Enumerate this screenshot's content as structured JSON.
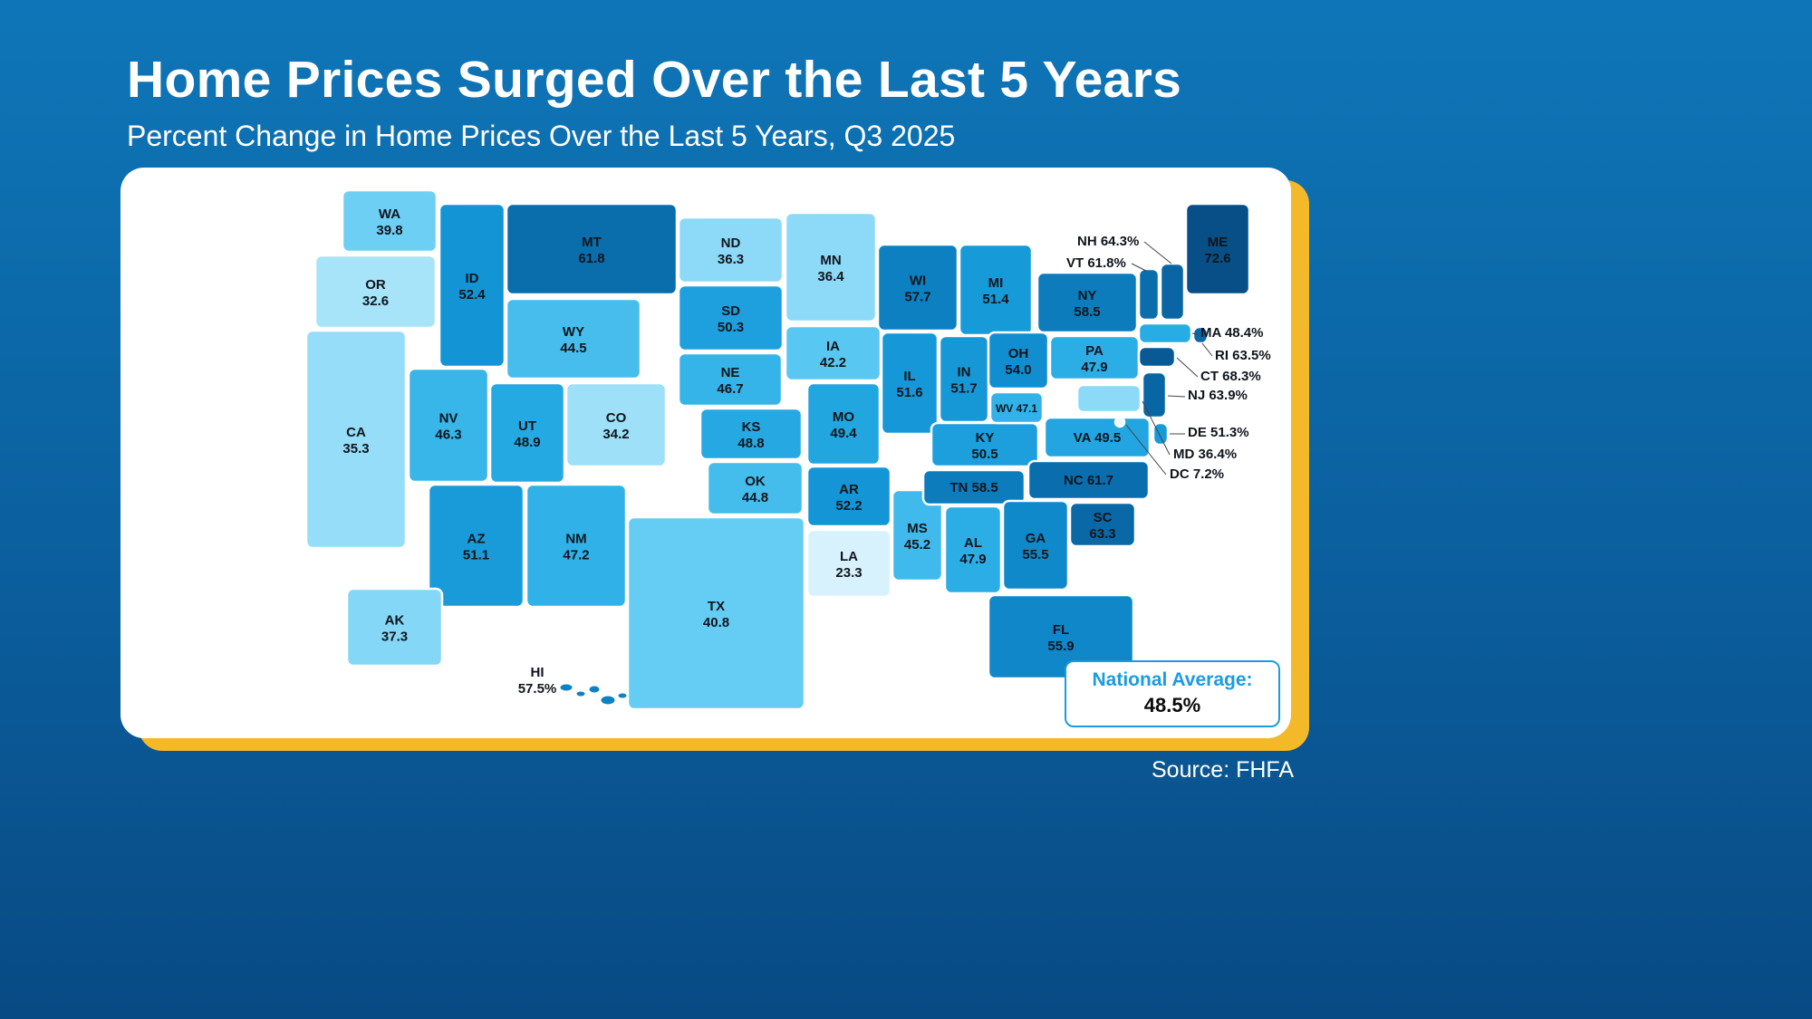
{
  "page": {
    "title": "Home Prices Surged Over the Last 5 Years",
    "subtitle": "Percent Change in Home Prices Over the Last 5 Years, Q3 2025",
    "source": "Source: FHFA"
  },
  "national_average": {
    "label": "National Average:",
    "value": "48.5%"
  },
  "chart_data": {
    "type": "choropleth-map",
    "region": "United States",
    "title": "Percent Change in Home Prices Over the Last 5 Years, Q3 2025",
    "unit": "percent",
    "value_range": [
      7.2,
      72.6
    ],
    "national_average": 48.5,
    "color_scale": {
      "low": "#f3fbff",
      "high": "#07497e"
    },
    "states": [
      {
        "abbr": "WA",
        "value": 39.8,
        "display": "39.8"
      },
      {
        "abbr": "OR",
        "value": 32.6,
        "display": "32.6"
      },
      {
        "abbr": "CA",
        "value": 35.3,
        "display": "35.3"
      },
      {
        "abbr": "NV",
        "value": 46.3,
        "display": "46.3"
      },
      {
        "abbr": "ID",
        "value": 52.4,
        "display": "52.4"
      },
      {
        "abbr": "MT",
        "value": 61.8,
        "display": "61.8"
      },
      {
        "abbr": "WY",
        "value": 44.5,
        "display": "44.5"
      },
      {
        "abbr": "UT",
        "value": 48.9,
        "display": "48.9"
      },
      {
        "abbr": "CO",
        "value": 34.2,
        "display": "34.2"
      },
      {
        "abbr": "AZ",
        "value": 51.1,
        "display": "51.1"
      },
      {
        "abbr": "NM",
        "value": 47.2,
        "display": "47.2"
      },
      {
        "abbr": "ND",
        "value": 36.3,
        "display": "36.3"
      },
      {
        "abbr": "SD",
        "value": 50.3,
        "display": "50.3"
      },
      {
        "abbr": "NE",
        "value": 46.7,
        "display": "46.7"
      },
      {
        "abbr": "KS",
        "value": 48.8,
        "display": "48.8"
      },
      {
        "abbr": "OK",
        "value": 44.8,
        "display": "44.8"
      },
      {
        "abbr": "TX",
        "value": 40.8,
        "display": "40.8"
      },
      {
        "abbr": "MN",
        "value": 36.4,
        "display": "36.4"
      },
      {
        "abbr": "IA",
        "value": 42.2,
        "display": "42.2"
      },
      {
        "abbr": "MO",
        "value": 49.4,
        "display": "49.4"
      },
      {
        "abbr": "AR",
        "value": 52.2,
        "display": "52.2"
      },
      {
        "abbr": "LA",
        "value": 23.3,
        "display": "23.3"
      },
      {
        "abbr": "WI",
        "value": 57.7,
        "display": "57.7"
      },
      {
        "abbr": "IL",
        "value": 51.6,
        "display": "51.6"
      },
      {
        "abbr": "MS",
        "value": 45.2,
        "display": "45.2"
      },
      {
        "abbr": "MI",
        "value": 51.4,
        "display": "51.4"
      },
      {
        "abbr": "IN",
        "value": 51.7,
        "display": "51.7"
      },
      {
        "abbr": "OH",
        "value": 54.0,
        "display": "54.0"
      },
      {
        "abbr": "KY",
        "value": 50.5,
        "display": "50.5"
      },
      {
        "abbr": "TN",
        "value": 58.5,
        "display": "58.5"
      },
      {
        "abbr": "AL",
        "value": 47.9,
        "display": "47.9"
      },
      {
        "abbr": "GA",
        "value": 55.5,
        "display": "55.5"
      },
      {
        "abbr": "FL",
        "value": 55.9,
        "display": "55.9"
      },
      {
        "abbr": "SC",
        "value": 63.3,
        "display": "63.3"
      },
      {
        "abbr": "NC",
        "value": 61.7,
        "display": "61.7"
      },
      {
        "abbr": "VA",
        "value": 49.5,
        "display": "49.5"
      },
      {
        "abbr": "WV",
        "value": 47.1,
        "display": "47.1"
      },
      {
        "abbr": "PA",
        "value": 47.9,
        "display": "47.9"
      },
      {
        "abbr": "NY",
        "value": 58.5,
        "display": "58.5"
      },
      {
        "abbr": "ME",
        "value": 72.6,
        "display": "72.6"
      },
      {
        "abbr": "AK",
        "value": 37.3,
        "display": "37.3"
      },
      {
        "abbr": "HI",
        "value": 57.5,
        "display": "57.5%"
      },
      {
        "abbr": "NH",
        "value": 64.3,
        "display": "64.3%"
      },
      {
        "abbr": "VT",
        "value": 61.8,
        "display": "61.8%"
      },
      {
        "abbr": "MA",
        "value": 48.4,
        "display": "48.4%"
      },
      {
        "abbr": "RI",
        "value": 63.5,
        "display": "63.5%"
      },
      {
        "abbr": "CT",
        "value": 68.3,
        "display": "68.3%"
      },
      {
        "abbr": "NJ",
        "value": 63.9,
        "display": "63.9%"
      },
      {
        "abbr": "DE",
        "value": 51.3,
        "display": "51.3%"
      },
      {
        "abbr": "MD",
        "value": 36.4,
        "display": "36.4%"
      },
      {
        "abbr": "DC",
        "value": 7.2,
        "display": "7.2%"
      }
    ]
  }
}
